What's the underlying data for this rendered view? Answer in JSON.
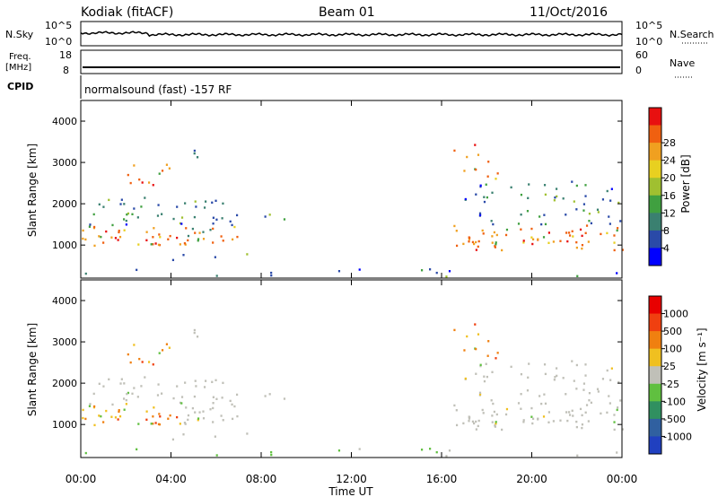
{
  "header": {
    "station": "Kodiak (fitACF)",
    "beam": "Beam 01",
    "date": "11/Oct/2016"
  },
  "strip_labels": {
    "nsky": "N.Sky",
    "nsearch": "N.Search",
    "freq_line1": "Freq.",
    "freq_line2": "[MHz]",
    "nave": "Nave",
    "cpid": "CPID",
    "nsky_ticks": [
      "10^5",
      "10^0"
    ],
    "nsearch_ticks": [
      "10^5",
      "10^0"
    ],
    "freq_ticks": [
      "18",
      "8"
    ],
    "nave_ticks": [
      "60",
      "0"
    ],
    "cpid_text": "normalsound (fast) -157 RF"
  },
  "chart_data": [
    {
      "type": "heatmap",
      "name": "power",
      "xlabel": "",
      "ylabel": "Slant Range [km]",
      "xlim": [
        0,
        24
      ],
      "ylim": [
        200,
        4500
      ],
      "yticks": [
        "1000",
        "2000",
        "3000",
        "4000"
      ],
      "colorbar": {
        "label": "Power [dB]",
        "ticks": [
          "4",
          "8",
          "12",
          "16",
          "20",
          "24",
          "28"
        ],
        "colors": [
          "#0000ff",
          "#2a4aa8",
          "#3a8070",
          "#40a040",
          "#a0c030",
          "#e8d020",
          "#f0a020",
          "#f06010",
          "#e81010"
        ]
      }
    },
    {
      "type": "heatmap",
      "name": "velocity",
      "xlabel": "Time UT",
      "ylabel": "Slant Range [km]",
      "xlim": [
        0,
        24
      ],
      "ylim": [
        200,
        4500
      ],
      "yticks": [
        "1000",
        "2000",
        "3000",
        "4000"
      ],
      "xticks": [
        "00:00",
        "04:00",
        "08:00",
        "12:00",
        "16:00",
        "20:00",
        "00:00"
      ],
      "colorbar": {
        "label": "Velocity [m s⁻¹]",
        "ticks": [
          "1000",
          "500",
          "100",
          "25",
          "-25",
          "-100",
          "-500",
          "-1000"
        ],
        "colors": [
          "#2040c0",
          "#3060a0",
          "#309060",
          "#60c040",
          "#c0c0b8",
          "#f0c020",
          "#f08010",
          "#f04010",
          "#e80000"
        ]
      }
    }
  ]
}
